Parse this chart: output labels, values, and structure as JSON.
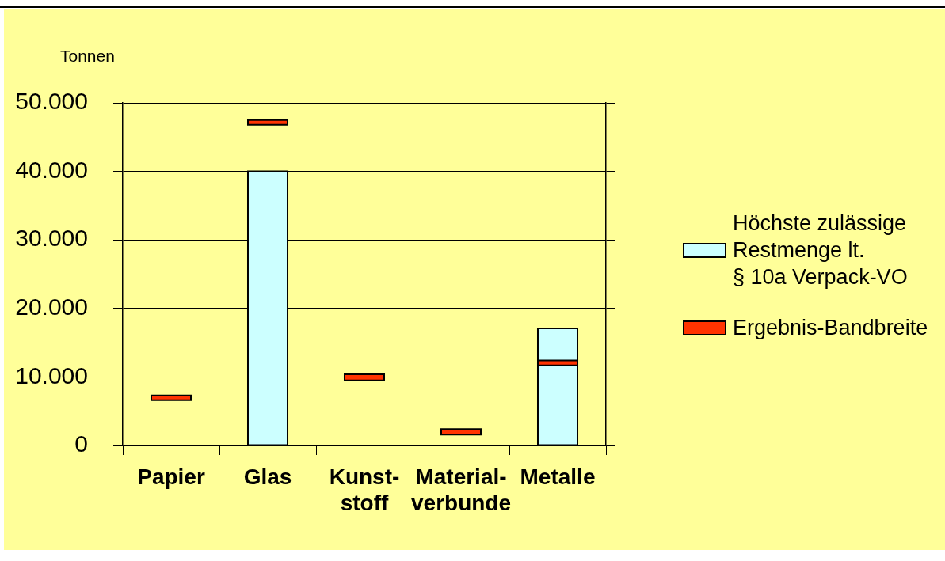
{
  "chart_data": {
    "type": "bar",
    "ylabel": "Tonnen",
    "categories": [
      "Papier",
      "Glas",
      "Kunst-\nstoff",
      "Material-\nverbunde",
      "Metalle"
    ],
    "series": [
      {
        "name": "Höchste zulässige\nRestmenge lt.\n§ 10a Verpack-VO",
        "color": "#ccffff",
        "values": [
          null,
          40000,
          null,
          null,
          17100
        ]
      },
      {
        "name": "Ergebnis-Bandbreite",
        "color": "#ff3300",
        "base": [
          6600,
          46800,
          9500,
          1600,
          11700
        ],
        "values": [
          700,
          700,
          900,
          800,
          700
        ]
      }
    ],
    "ylim": [
      0,
      50000
    ],
    "yticks": [
      0,
      {
        "value": 10000,
        "label": "10.000"
      },
      {
        "value": 20000,
        "label": "20.000"
      },
      {
        "value": 30000,
        "label": "30.000"
      },
      {
        "value": 40000,
        "label": "40.000"
      },
      {
        "value": 50000,
        "label": "50.000"
      }
    ],
    "grid": "y",
    "legend": "right"
  }
}
